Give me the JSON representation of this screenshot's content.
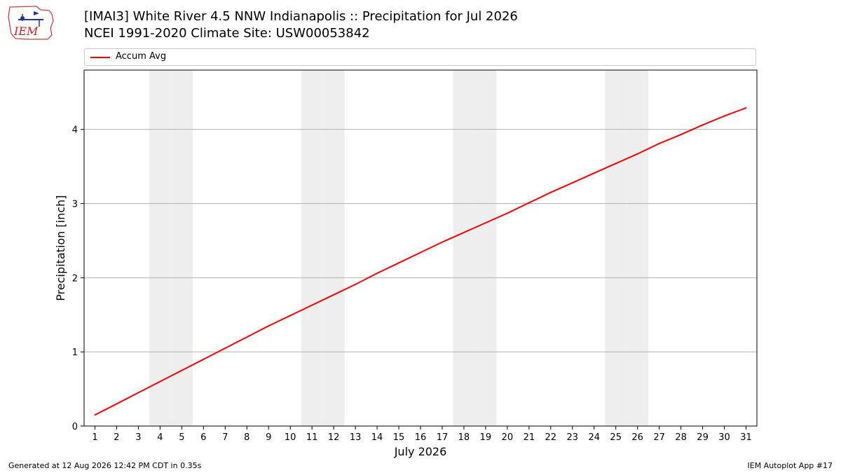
{
  "logo": {
    "text": "IEM"
  },
  "header": {
    "title_line1": "[IMAI3] White River 4.5 NNW Indianapolis :: Precipitation for Jul 2026",
    "title_line2": "NCEI 1991-2020 Climate Site: USW00053842"
  },
  "footer": {
    "left": "Generated at 12 Aug 2026 12:42 PM CDT in 0.35s",
    "right": "IEM Autoplot App #17"
  },
  "colors": {
    "series": "#ff0000",
    "weekend": "#eeeeee",
    "grid": "#b0b0b0"
  },
  "chart_data": {
    "type": "line",
    "xlabel": "July 2026",
    "ylabel": "Precipitation [inch]",
    "xlim": [
      0.5,
      31.5
    ],
    "ylim": [
      0,
      4.8
    ],
    "yticks": [
      0,
      1,
      2,
      3,
      4
    ],
    "grid": "horizontal",
    "legend": "top",
    "shaded_days": [
      4,
      5,
      11,
      12,
      18,
      19,
      25,
      26
    ],
    "x": [
      1,
      2,
      3,
      4,
      5,
      6,
      7,
      8,
      9,
      10,
      11,
      12,
      13,
      14,
      15,
      16,
      17,
      18,
      19,
      20,
      21,
      22,
      23,
      24,
      25,
      26,
      27,
      28,
      29,
      30,
      31
    ],
    "series": [
      {
        "name": "Accum Avg",
        "values": [
          0.15,
          0.3,
          0.45,
          0.6,
          0.75,
          0.9,
          1.05,
          1.2,
          1.35,
          1.49,
          1.63,
          1.77,
          1.91,
          2.06,
          2.2,
          2.34,
          2.48,
          2.61,
          2.74,
          2.87,
          3.01,
          3.15,
          3.28,
          3.41,
          3.54,
          3.67,
          3.81,
          3.93,
          4.06,
          4.18,
          4.29
        ]
      }
    ]
  }
}
